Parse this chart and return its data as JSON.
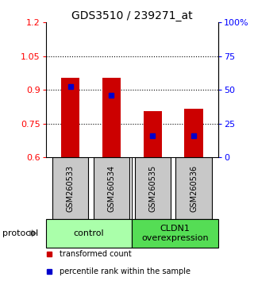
{
  "title": "GDS3510 / 239271_at",
  "samples": [
    "GSM260533",
    "GSM260534",
    "GSM260535",
    "GSM260536"
  ],
  "bar_bottom": 0.6,
  "bar_tops": [
    0.955,
    0.955,
    0.805,
    0.815
  ],
  "percentile_values": [
    0.915,
    0.875,
    0.695,
    0.695
  ],
  "ylim_left": [
    0.6,
    1.2
  ],
  "ylim_right": [
    0,
    100
  ],
  "yticks_left": [
    0.6,
    0.75,
    0.9,
    1.05,
    1.2
  ],
  "yticks_right": [
    0,
    25,
    50,
    75,
    100
  ],
  "ytick_labels_left": [
    "0.6",
    "0.75",
    "0.9",
    "1.05",
    "1.2"
  ],
  "ytick_labels_right": [
    "0",
    "25",
    "50",
    "75",
    "100%"
  ],
  "hlines": [
    0.75,
    0.9,
    1.05
  ],
  "bar_color": "#CC0000",
  "percentile_color": "#0000CC",
  "bar_width": 0.45,
  "groups": [
    {
      "label": "control",
      "color": "#AAFFAA"
    },
    {
      "label": "CLDN1\noverexpression",
      "color": "#55DD55"
    }
  ],
  "protocol_label": "protocol",
  "legend_red_label": "transformed count",
  "legend_blue_label": "percentile rank within the sample",
  "sample_box_color": "#C8C8C8",
  "title_fontsize": 10,
  "tick_fontsize": 8,
  "sample_fontsize": 7,
  "legend_fontsize": 7,
  "protocol_fontsize": 8,
  "group_fontsize": 8
}
